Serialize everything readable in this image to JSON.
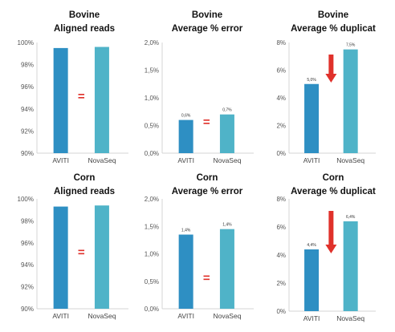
{
  "chart_data": [
    {
      "type": "bar",
      "title": "Bovine",
      "subtitle": "Aligned reads",
      "categories": [
        "AVITI",
        "NovaSeq"
      ],
      "values": [
        99.5,
        99.6
      ],
      "ylim": [
        90,
        100
      ],
      "yticks": [
        "90%",
        "92%",
        "94%",
        "96%",
        "98%",
        "100%"
      ],
      "data_labels": [],
      "annotation": "=",
      "grid": false
    },
    {
      "type": "bar",
      "title": "Bovine",
      "subtitle": "Average % error",
      "categories": [
        "AVITI",
        "NovaSeq"
      ],
      "values": [
        0.6,
        0.7
      ],
      "ylim": [
        0,
        2.0
      ],
      "yticks": [
        "0,0%",
        "0,5%",
        "1,0%",
        "1,5%",
        "2,0%"
      ],
      "data_labels": [
        "0,6%",
        "0,7%"
      ],
      "annotation": "=",
      "grid": false
    },
    {
      "type": "bar",
      "title": "Bovine",
      "subtitle": "Average % duplicat",
      "categories": [
        "AVITI",
        "NovaSeq"
      ],
      "values": [
        5.0,
        7.5
      ],
      "ylim": [
        0,
        8
      ],
      "yticks": [
        "0%",
        "2%",
        "4%",
        "6%",
        "8%"
      ],
      "data_labels": [
        "5,0%",
        "7,5%"
      ],
      "annotation": "down-arrow",
      "grid": false
    },
    {
      "type": "bar",
      "title": "Corn",
      "subtitle": "Aligned reads",
      "categories": [
        "AVITI",
        "NovaSeq"
      ],
      "values": [
        99.3,
        99.4
      ],
      "ylim": [
        90,
        100
      ],
      "yticks": [
        "90%",
        "92%",
        "94%",
        "96%",
        "98%",
        "100%"
      ],
      "data_labels": [],
      "annotation": "=",
      "grid": false
    },
    {
      "type": "bar",
      "title": "Corn",
      "subtitle": "Average % error",
      "categories": [
        "AVITI",
        "NovaSeq"
      ],
      "values": [
        1.35,
        1.45
      ],
      "ylim": [
        0,
        2.0
      ],
      "yticks": [
        "0,0%",
        "0,5%",
        "1,0%",
        "1,5%",
        "2,0%"
      ],
      "data_labels": [
        "1,4%",
        "1,4%"
      ],
      "annotation": "=",
      "grid": false
    },
    {
      "type": "bar",
      "title": "Corn",
      "subtitle": "Average % duplicat",
      "categories": [
        "AVITI",
        "NovaSeq"
      ],
      "values": [
        4.4,
        6.4
      ],
      "ylim": [
        0,
        8
      ],
      "yticks": [
        "0%",
        "2%",
        "4%",
        "6%",
        "8%"
      ],
      "data_labels": [
        "4,4%",
        "6,4%"
      ],
      "annotation": "down-arrow",
      "grid": false
    }
  ],
  "colors": {
    "AVITI": "#2e8fc3",
    "NovaSeq": "#4fb3c8",
    "annotation": "#e0312b",
    "axis": "#d4d4d4"
  }
}
